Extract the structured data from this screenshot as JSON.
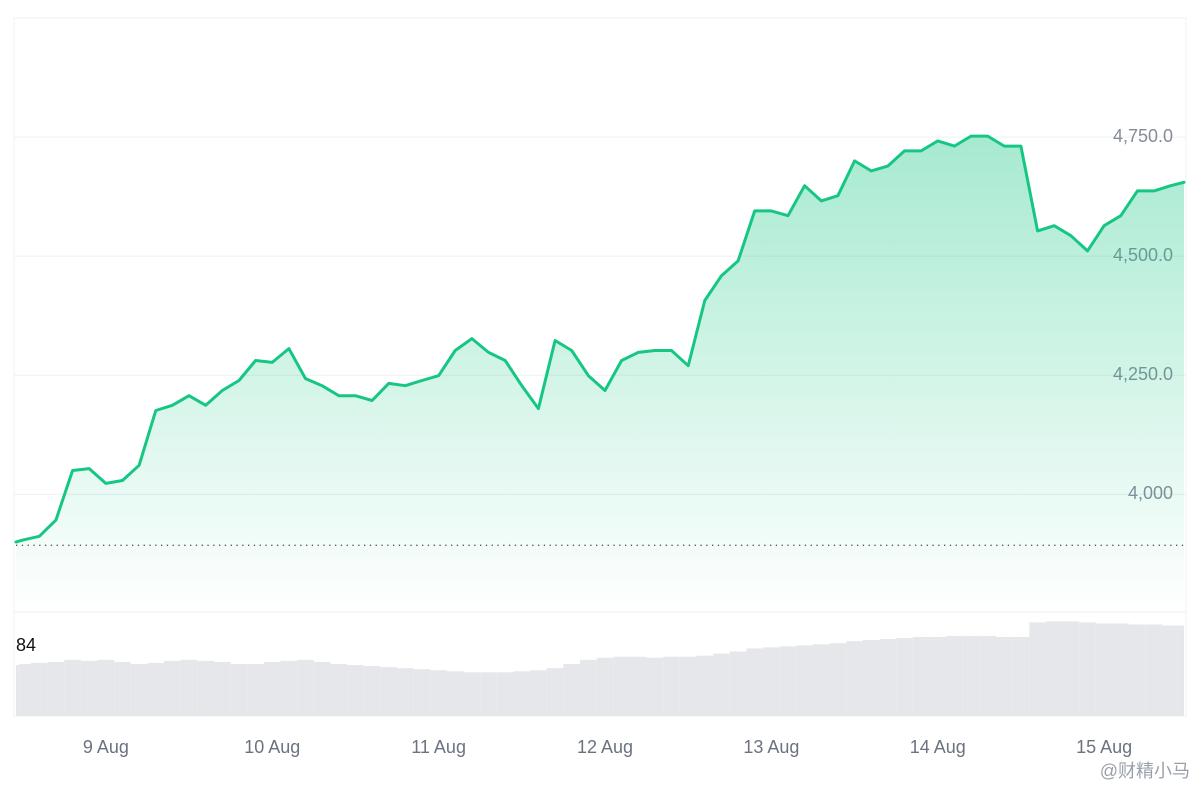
{
  "chart_data": {
    "type": "line",
    "color": "#16c784",
    "x": [
      8.46,
      8.5,
      8.6,
      8.7,
      8.8,
      8.9,
      9.0,
      9.1,
      9.2,
      9.3,
      9.4,
      9.5,
      9.6,
      9.7,
      9.8,
      9.9,
      10.0,
      10.1,
      10.2,
      10.3,
      10.4,
      10.5,
      10.6,
      10.7,
      10.8,
      10.9,
      11.0,
      11.1,
      11.2,
      11.3,
      11.4,
      11.5,
      11.6,
      11.7,
      11.8,
      11.9,
      12.0,
      12.1,
      12.2,
      12.3,
      12.4,
      12.5,
      12.6,
      12.7,
      12.8,
      12.9,
      13.0,
      13.1,
      13.2,
      13.3,
      13.4,
      13.5,
      13.6,
      13.7,
      13.8,
      13.9,
      14.0,
      14.1,
      14.2,
      14.3,
      14.4,
      14.5,
      14.6,
      14.7,
      14.8,
      14.9,
      15.0,
      15.1,
      15.2,
      15.3,
      15.4,
      15.48
    ],
    "values": [
      3900,
      3904,
      3912,
      3946,
      4050,
      4054,
      4023,
      4029,
      4061,
      4176,
      4187,
      4207,
      4187,
      4218,
      4239,
      4281,
      4277,
      4306,
      4243,
      4228,
      4207,
      4207,
      4197,
      4233,
      4228,
      4239,
      4249,
      4302,
      4327,
      4298,
      4281,
      4228,
      4180,
      4323,
      4302,
      4249,
      4218,
      4281,
      4298,
      4302,
      4302,
      4270,
      4407,
      4459,
      4490,
      4595,
      4595,
      4585,
      4648,
      4616,
      4627,
      4700,
      4679,
      4689,
      4721,
      4721,
      4742,
      4731,
      4752,
      4752,
      4731,
      4731,
      4553,
      4564,
      4543,
      4511,
      4564,
      4585,
      4637,
      4637,
      4648,
      4655
    ],
    "baseline": 3893,
    "xlim": [
      8.46,
      15.48
    ],
    "xticks": [
      {
        "value": 9,
        "label": "9 Aug"
      },
      {
        "value": 10,
        "label": "10 Aug"
      },
      {
        "value": 11,
        "label": "11 Aug"
      },
      {
        "value": 12,
        "label": "12 Aug"
      },
      {
        "value": 13,
        "label": "13 Aug"
      },
      {
        "value": 14,
        "label": "14 Aug"
      },
      {
        "value": 15,
        "label": "15 Aug"
      }
    ],
    "ylim": [
      3753,
      5000
    ],
    "yticks": [
      {
        "value": 4000,
        "label": "4,000"
      },
      {
        "value": 4250,
        "label": "4,250.0"
      },
      {
        "value": 4500,
        "label": "4,500.0"
      },
      {
        "value": 4750,
        "label": "4,750.0"
      }
    ],
    "grid": true,
    "volume": {
      "label": "84",
      "color": "#e6e7eb",
      "ylim": [
        0,
        100
      ],
      "values": [
        49,
        50,
        51,
        52,
        54,
        53,
        54,
        52,
        50,
        51,
        53,
        54,
        53,
        52,
        50,
        50,
        52,
        53,
        54,
        52,
        50,
        49,
        48,
        47,
        46,
        45,
        44,
        43,
        42,
        42,
        42,
        43,
        44,
        46,
        50,
        54,
        56,
        57,
        57,
        56,
        57,
        57,
        58,
        60,
        62,
        65,
        66,
        67,
        68,
        69,
        70,
        72,
        73,
        74,
        75,
        76,
        76,
        77,
        77,
        77,
        76,
        76,
        90,
        91,
        91,
        90,
        89,
        89,
        88,
        88,
        87,
        87
      ]
    },
    "watermark": "@财精小马"
  }
}
